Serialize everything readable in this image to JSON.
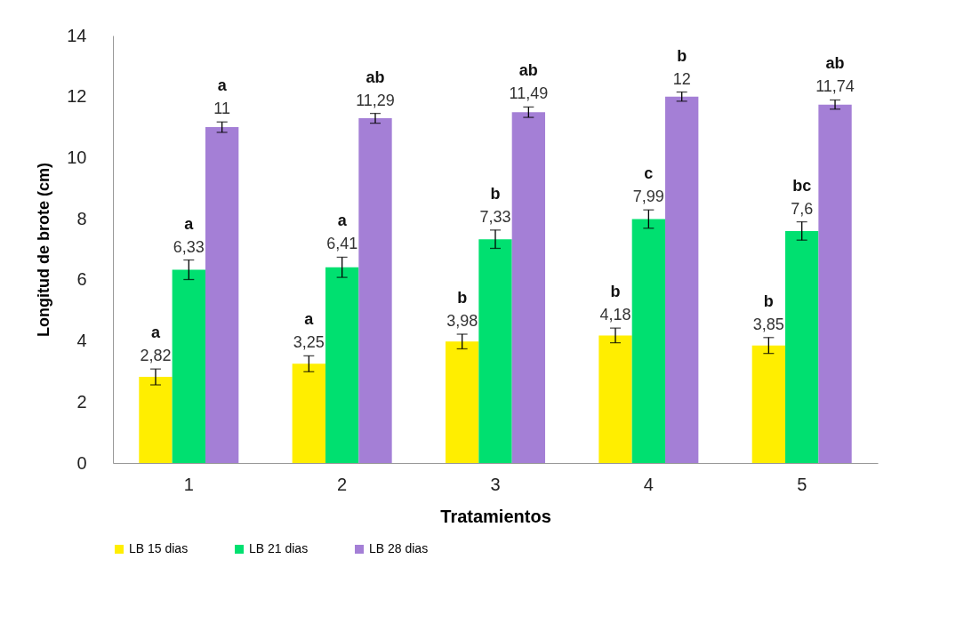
{
  "chart_data": {
    "type": "bar",
    "xlabel": "Tratamientos",
    "ylabel": "Longitud de brote (cm)",
    "categories": [
      "1",
      "2",
      "3",
      "4",
      "5"
    ],
    "ylim": [
      0,
      14
    ],
    "yticks": [
      0,
      2,
      4,
      6,
      8,
      10,
      12,
      14
    ],
    "grid": false,
    "legend": "bottom",
    "series": [
      {
        "name": "LB 15 dias",
        "color": "#ffee00",
        "values": [
          2.82,
          3.25,
          3.98,
          4.18,
          3.85
        ],
        "errors": [
          0.26,
          0.26,
          0.24,
          0.24,
          0.26
        ],
        "value_labels": [
          "2,82",
          "3,25",
          "3,98",
          "4,18",
          "3,85"
        ]
      },
      {
        "name": "LB 21 dias",
        "color": "#00e070",
        "values": [
          6.33,
          6.41,
          7.33,
          7.99,
          7.6
        ],
        "errors": [
          0.32,
          0.33,
          0.3,
          0.3,
          0.3
        ],
        "value_labels": [
          "6,33",
          "6,41",
          "7,33",
          "7,99",
          "7,6"
        ]
      },
      {
        "name": "LB 28 dias",
        "color": "#a47fd6",
        "values": [
          11,
          11.29,
          11.49,
          12,
          11.74
        ],
        "errors": [
          0.17,
          0.16,
          0.17,
          0.15,
          0.15
        ],
        "value_labels": [
          "11",
          "11,29",
          "11,49",
          "12",
          "11,74"
        ]
      }
    ],
    "annotations": [
      "a",
      "a",
      "a",
      "a",
      "a",
      "ab",
      "b",
      "b",
      "ab",
      "b",
      "c",
      "b",
      "b",
      "bc",
      "ab"
    ]
  }
}
